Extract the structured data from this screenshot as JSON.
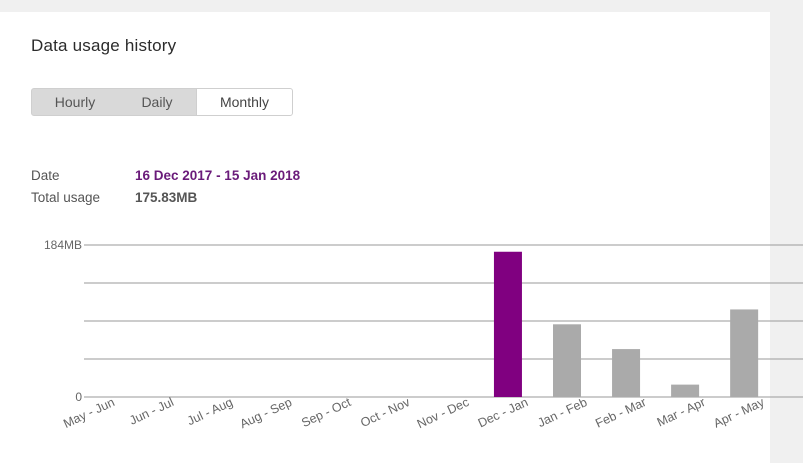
{
  "panel": {
    "title": "Data usage history",
    "tabs": [
      {
        "label": "Hourly",
        "selected": false
      },
      {
        "label": "Daily",
        "selected": false
      },
      {
        "label": "Monthly",
        "selected": true
      }
    ],
    "info": {
      "date_label": "Date",
      "date_value": "16 Dec 2017 - 15 Jan 2018",
      "total_label": "Total usage",
      "total_value": "175.83MB"
    }
  },
  "colors": {
    "selected_bar": "#800080",
    "bar": "#aaaaaa",
    "date_text": "#6a1b7a",
    "grid": "#9a9a9a"
  },
  "chart_data": {
    "type": "bar",
    "categories": [
      "May - Jun",
      "Jun - Jul",
      "Jul - Aug",
      "Aug - Sep",
      "Sep - Oct",
      "Oct - Nov",
      "Nov - Dec",
      "Dec - Jan",
      "Jan - Feb",
      "Feb - Mar",
      "Mar - Apr",
      "Apr - May"
    ],
    "values": [
      0,
      0,
      0,
      0,
      0,
      0,
      0,
      175.83,
      88,
      58,
      15,
      106
    ],
    "selected_index": 7,
    "ylim": [
      0,
      184
    ],
    "y_tick_labels": [
      {
        "value": 184,
        "label": "184MB"
      },
      {
        "value": 0,
        "label": "0"
      }
    ],
    "gridlines": [
      0,
      46,
      92,
      138,
      184
    ],
    "unit": "MB"
  }
}
